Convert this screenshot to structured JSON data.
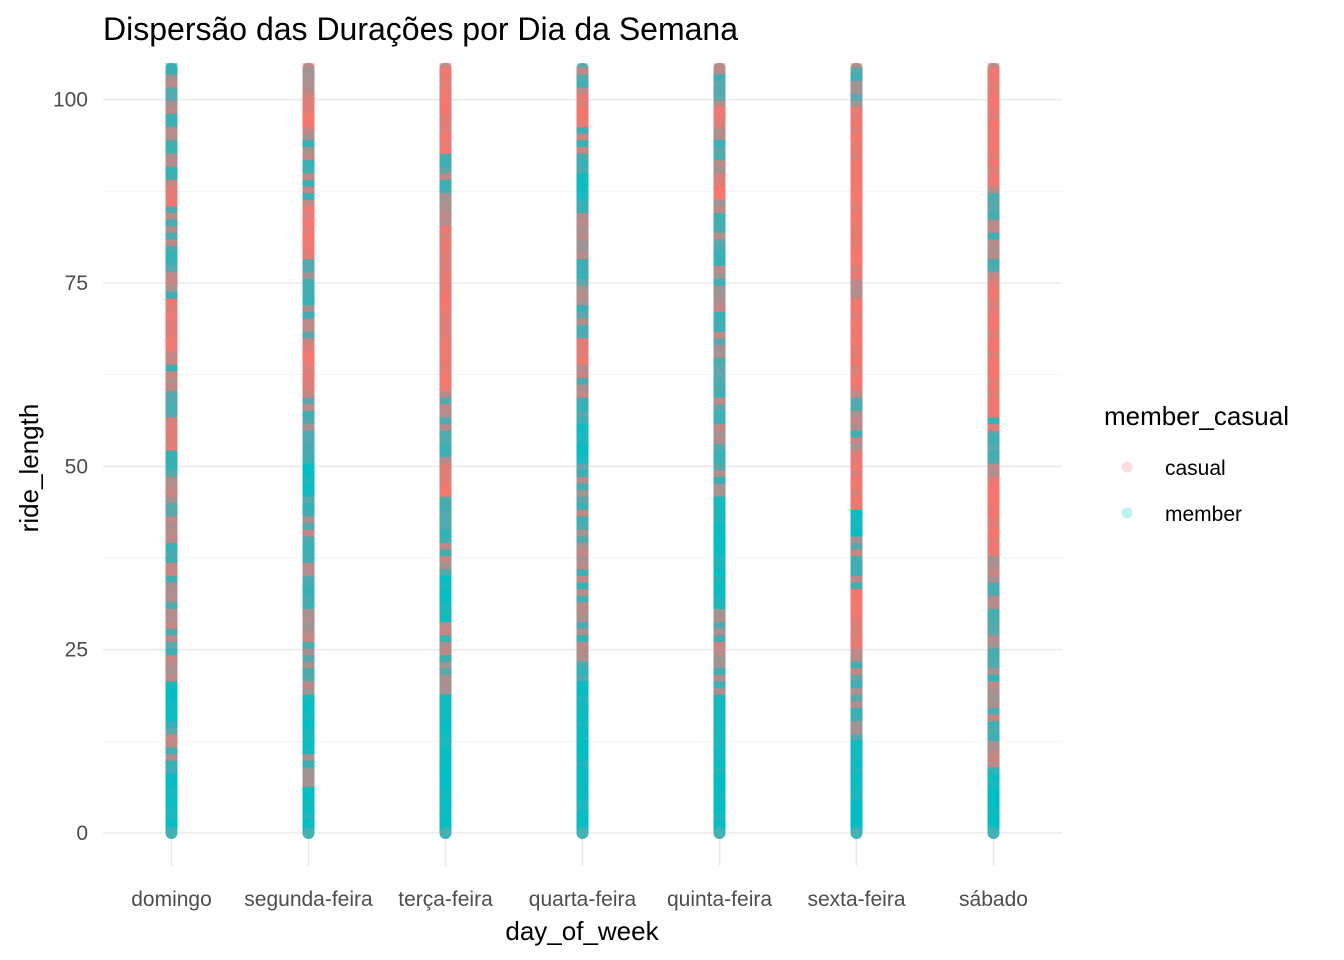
{
  "chart_data": {
    "type": "scatter",
    "title": "Dispersão das Durações por Dia da Semana",
    "xlabel": "day_of_week",
    "ylabel": "ride_length",
    "categories": [
      "domingo",
      "segunda-feira",
      "terça-feira",
      "quarta-feira",
      "quinta-feira",
      "sexta-feira",
      "sábado"
    ],
    "ylim": [
      -4.5,
      105
    ],
    "y_ticks": [
      0,
      25,
      50,
      75,
      100
    ],
    "grid": true,
    "legend": {
      "title": "member_casual",
      "placement": "right",
      "entries": [
        {
          "label": "casual",
          "color": "#F8766D"
        },
        {
          "label": "member",
          "color": "#00BFC4"
        }
      ]
    },
    "series": [
      {
        "name": "casual",
        "color": "#F8766D",
        "description": "dense vertical strips of points, one per weekday, ride_length spanning 0 to beyond 100",
        "dominant_ranges": [
          [
            [
              52,
              56
            ],
            [
              65,
              72
            ],
            [
              85,
              88
            ]
          ],
          [
            [
              60,
              66
            ],
            [
              78,
              85
            ],
            [
              96,
              100
            ]
          ],
          [
            [
              45,
              50
            ],
            [
              60,
              82
            ],
            [
              92,
              104
            ]
          ],
          [
            [
              63,
              67
            ],
            [
              96,
              100
            ]
          ],
          [
            [
              96,
              99
            ],
            [
              86,
              90
            ]
          ],
          [
            [
              25,
              33
            ],
            [
              44,
              52
            ],
            [
              60,
              72
            ],
            [
              75,
              99
            ]
          ],
          [
            [
              37,
              55
            ],
            [
              56,
              75
            ],
            [
              88,
              104
            ]
          ]
        ]
      },
      {
        "name": "member",
        "color": "#00BFC4",
        "description": "dense vertical strips of points, one per weekday, concentrated at short ride lengths",
        "dominant_ranges": [
          [
            [
              0,
              8
            ],
            [
              15,
              20
            ]
          ],
          [
            [
              0,
              6
            ],
            [
              10,
              18
            ],
            [
              45,
              50
            ]
          ],
          [
            [
              0,
              18
            ],
            [
              28,
              35
            ]
          ],
          [
            [
              0,
              20
            ],
            [
              50,
              55
            ],
            [
              86,
              90
            ]
          ],
          [
            [
              0,
              18
            ],
            [
              30,
              45
            ]
          ],
          [
            [
              0,
              12
            ],
            [
              40,
              44
            ]
          ],
          [
            [
              0,
              8
            ],
            [
              48,
              54
            ]
          ]
        ]
      }
    ]
  }
}
